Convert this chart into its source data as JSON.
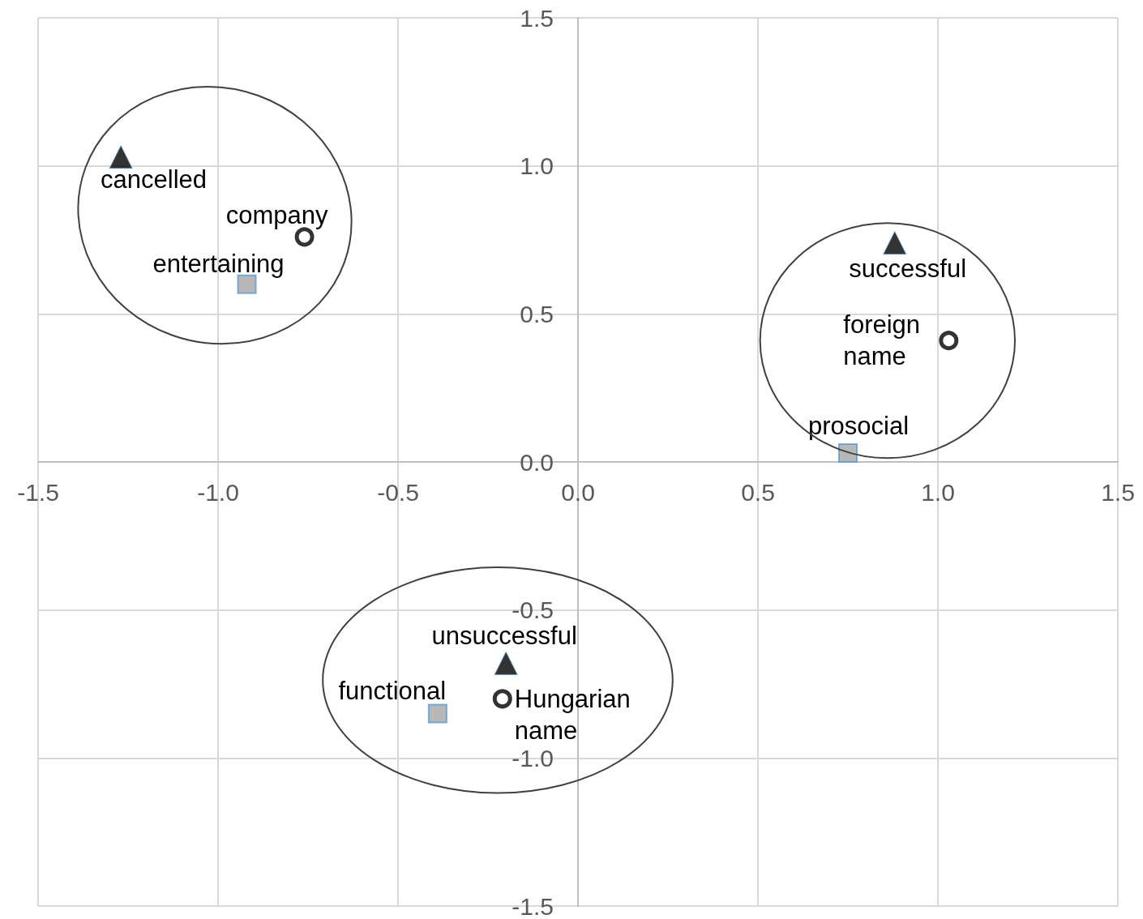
{
  "chart_data": {
    "type": "scatter",
    "series": [
      {
        "color": "#000000",
        "marker": "triangle",
        "x": [
          -1.27,
          0.88,
          -0.2
        ],
        "values": [
          1.03,
          0.74,
          -0.68
        ]
      },
      {
        "color": "#000000",
        "marker": "circle",
        "x": [
          -0.76,
          1.03,
          -0.21
        ],
        "values": [
          0.76,
          0.41,
          -0.8
        ]
      },
      {
        "color": "#a6a6a6",
        "marker": "square",
        "x": [
          -0.92,
          0.75,
          -0.39
        ],
        "values": [
          0.6,
          0.03,
          -0.85
        ]
      }
    ],
    "xlim": [
      -1.5,
      1.5
    ],
    "xticks": [
      {
        "value": -1.5,
        "label": "-1.5"
      },
      {
        "value": -1,
        "label": "-1.0"
      },
      {
        "value": -0.5,
        "label": "-0.5"
      },
      {
        "value": 0,
        "label": "0.0"
      },
      {
        "value": 0.5,
        "label": "0.5"
      },
      {
        "value": 1,
        "label": "1.0"
      },
      {
        "value": 1.5,
        "label": "1.5"
      }
    ],
    "ylim": [
      -1.5,
      1.5
    ],
    "yticks": [
      {
        "value": -1.5,
        "label": "-1.5"
      },
      {
        "value": -1,
        "label": "-1.0"
      },
      {
        "value": -0.5,
        "label": "-0.5"
      },
      {
        "value": 0,
        "label": "0.0"
      },
      {
        "value": 0.5,
        "label": "0.5"
      },
      {
        "value": 1,
        "label": "1.0"
      },
      {
        "value": 1.5,
        "label": "1.5"
      }
    ],
    "grid": true,
    "annotations": [
      {
        "text": "cancelled",
        "x": -1.27,
        "y": 1.03
      },
      {
        "text": "company",
        "x": -0.76,
        "y": 0.76
      },
      {
        "text": "entertaining",
        "x": -0.92,
        "y": 0.6
      },
      {
        "text": "successful",
        "x": 0.88,
        "y": 0.74
      },
      {
        "text": "foreign\nname",
        "x": 1.03,
        "y": 0.41
      },
      {
        "text": "prosocial",
        "x": 0.75,
        "y": 0.03
      },
      {
        "text": "unsuccessful",
        "x": -0.2,
        "y": -0.68
      },
      {
        "text": "Hungarian\nname",
        "x": -0.21,
        "y": -0.8
      },
      {
        "text": "functional",
        "x": -0.39,
        "y": -0.85
      }
    ]
  }
}
